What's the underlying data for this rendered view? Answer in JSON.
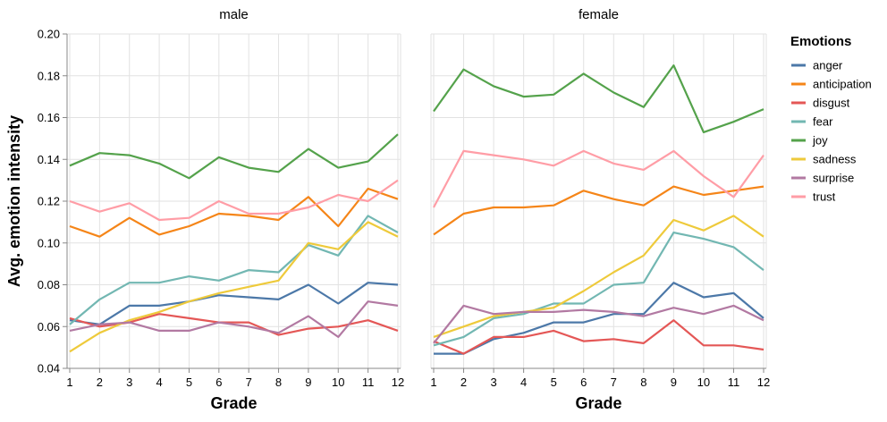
{
  "chart_data": {
    "type": "line",
    "ylabel": "Avg. emotion intensity",
    "xlabel": "Grade",
    "ylim": [
      0.04,
      0.2
    ],
    "yticks": [
      "0.04",
      "0.06",
      "0.08",
      "0.10",
      "0.12",
      "0.14",
      "0.16",
      "0.18",
      "0.20"
    ],
    "x": [
      1,
      2,
      3,
      4,
      5,
      6,
      7,
      8,
      9,
      10,
      11,
      12
    ],
    "grid": true,
    "legend": {
      "title": "Emotions",
      "placement": "right",
      "entries": [
        {
          "name": "anger",
          "color": "#4c78a8"
        },
        {
          "name": "anticipation",
          "color": "#f58518"
        },
        {
          "name": "disgust",
          "color": "#e45756"
        },
        {
          "name": "fear",
          "color": "#72b7b2"
        },
        {
          "name": "joy",
          "color": "#54a24b"
        },
        {
          "name": "sadness",
          "color": "#eeca3b"
        },
        {
          "name": "surprise",
          "color": "#b279a2"
        },
        {
          "name": "trust",
          "color": "#ff9da6"
        }
      ]
    },
    "facets": [
      {
        "title": "male",
        "series": [
          {
            "name": "anger",
            "values": [
              0.063,
              0.061,
              0.07,
              0.07,
              0.072,
              0.075,
              0.074,
              0.073,
              0.08,
              0.071,
              0.081,
              0.08
            ]
          },
          {
            "name": "anticipation",
            "values": [
              0.108,
              0.103,
              0.112,
              0.104,
              0.108,
              0.114,
              0.113,
              0.111,
              0.122,
              0.108,
              0.126,
              0.121
            ]
          },
          {
            "name": "disgust",
            "values": [
              0.064,
              0.06,
              0.062,
              0.066,
              0.064,
              0.062,
              0.062,
              0.056,
              0.059,
              0.06,
              0.063,
              0.058
            ]
          },
          {
            "name": "fear",
            "values": [
              0.061,
              0.073,
              0.081,
              0.081,
              0.084,
              0.082,
              0.087,
              0.086,
              0.099,
              0.094,
              0.113,
              0.105
            ]
          },
          {
            "name": "joy",
            "values": [
              0.137,
              0.143,
              0.142,
              0.138,
              0.131,
              0.141,
              0.136,
              0.134,
              0.145,
              0.136,
              0.139,
              0.152
            ]
          },
          {
            "name": "sadness",
            "values": [
              0.048,
              0.057,
              0.063,
              0.067,
              0.072,
              0.076,
              0.079,
              0.082,
              0.1,
              0.097,
              0.11,
              0.103
            ]
          },
          {
            "name": "surprise",
            "values": [
              0.058,
              0.061,
              0.062,
              0.058,
              0.058,
              0.062,
              0.06,
              0.057,
              0.065,
              0.055,
              0.072,
              0.07
            ]
          },
          {
            "name": "trust",
            "values": [
              0.12,
              0.115,
              0.119,
              0.111,
              0.112,
              0.12,
              0.114,
              0.114,
              0.117,
              0.123,
              0.12,
              0.13
            ]
          }
        ]
      },
      {
        "title": "female",
        "series": [
          {
            "name": "anger",
            "values": [
              0.047,
              0.047,
              0.054,
              0.057,
              0.062,
              0.062,
              0.066,
              0.066,
              0.081,
              0.074,
              0.076,
              0.064
            ]
          },
          {
            "name": "anticipation",
            "values": [
              0.104,
              0.114,
              0.117,
              0.117,
              0.118,
              0.125,
              0.121,
              0.118,
              0.127,
              0.123,
              0.125,
              0.127
            ]
          },
          {
            "name": "disgust",
            "values": [
              0.053,
              0.047,
              0.055,
              0.055,
              0.058,
              0.053,
              0.054,
              0.052,
              0.063,
              0.051,
              0.051,
              0.049
            ]
          },
          {
            "name": "fear",
            "values": [
              0.051,
              0.055,
              0.064,
              0.066,
              0.071,
              0.071,
              0.08,
              0.081,
              0.105,
              0.102,
              0.098,
              0.087
            ]
          },
          {
            "name": "joy",
            "values": [
              0.163,
              0.183,
              0.175,
              0.17,
              0.171,
              0.181,
              0.172,
              0.165,
              0.185,
              0.153,
              0.158,
              0.164
            ]
          },
          {
            "name": "sadness",
            "values": [
              0.055,
              0.06,
              0.065,
              0.067,
              0.069,
              0.077,
              0.086,
              0.094,
              0.111,
              0.106,
              0.113,
              0.103
            ]
          },
          {
            "name": "surprise",
            "values": [
              0.052,
              0.07,
              0.066,
              0.067,
              0.067,
              0.068,
              0.067,
              0.065,
              0.069,
              0.066,
              0.07,
              0.063
            ]
          },
          {
            "name": "trust",
            "values": [
              0.117,
              0.144,
              0.142,
              0.14,
              0.137,
              0.144,
              0.138,
              0.135,
              0.144,
              0.132,
              0.122,
              0.142
            ]
          }
        ]
      }
    ]
  }
}
